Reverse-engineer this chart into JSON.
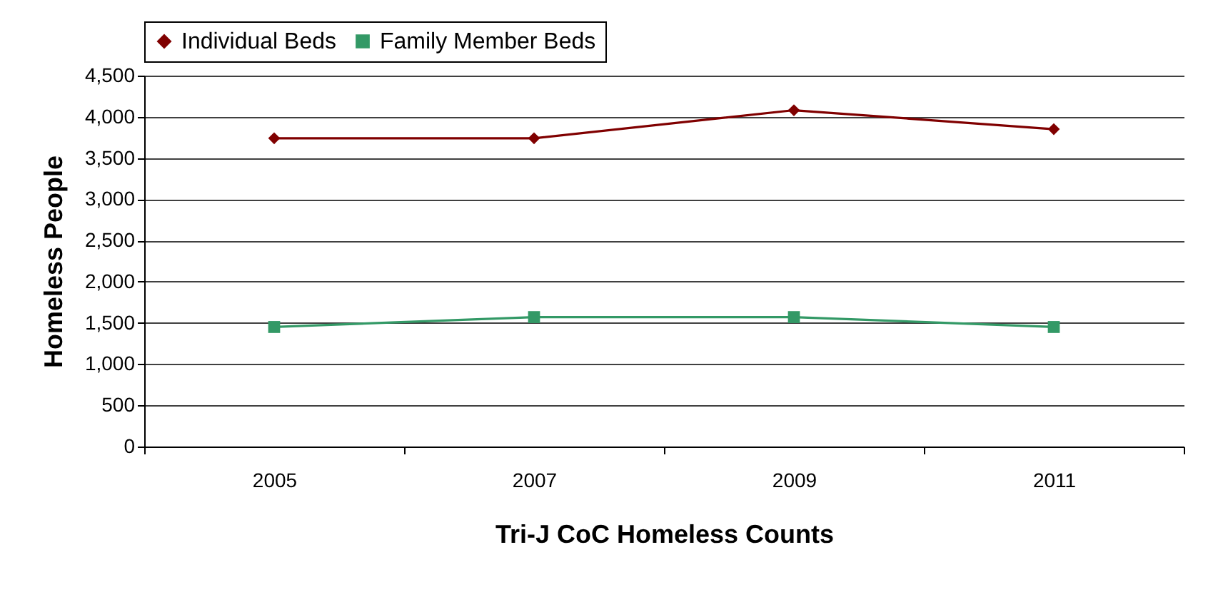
{
  "chart_data": {
    "type": "line",
    "xlabel": "Tri-J CoC Homeless Counts",
    "ylabel": "Homeless People",
    "categories": [
      "2005",
      "2007",
      "2009",
      "2011"
    ],
    "series": [
      {
        "name": "Individual Beds",
        "color": "#800000",
        "marker": "diamond",
        "values": [
          3740,
          3740,
          4080,
          3850
        ]
      },
      {
        "name": "Family Member Beds",
        "color": "#339966",
        "marker": "square",
        "values": [
          1450,
          1570,
          1570,
          1450
        ]
      }
    ],
    "ylim": [
      0,
      4500
    ],
    "yticks": [
      {
        "value": 0,
        "label": "0"
      },
      {
        "value": 500,
        "label": "500"
      },
      {
        "value": 1000,
        "label": "1,000"
      },
      {
        "value": 1500,
        "label": "1,500"
      },
      {
        "value": 2000,
        "label": "2,000"
      },
      {
        "value": 2500,
        "label": "2,500"
      },
      {
        "value": 3000,
        "label": "3,000"
      },
      {
        "value": 3500,
        "label": "3,500"
      },
      {
        "value": 4000,
        "label": "4,000"
      },
      {
        "value": 4500,
        "label": "4,500"
      }
    ],
    "grid": "y",
    "legend": "top",
    "line_style": "solid"
  }
}
